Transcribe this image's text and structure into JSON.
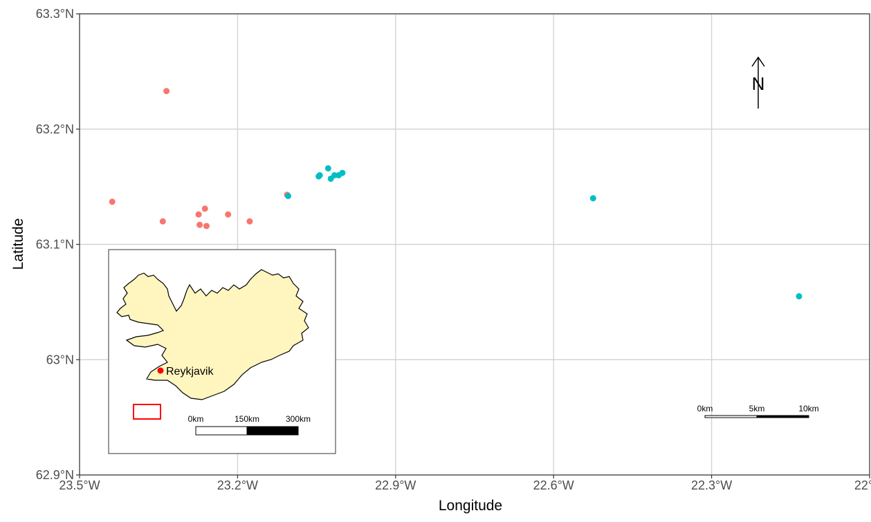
{
  "chart_data": {
    "type": "scatter",
    "xlabel": "Longitude",
    "ylabel": "Latitude",
    "xlim": [
      -23.5,
      -22.0
    ],
    "ylim": [
      62.9,
      63.3
    ],
    "x_ticks": [
      {
        "value": -23.5,
        "label": "23.5°W"
      },
      {
        "value": -23.2,
        "label": "23.2°W"
      },
      {
        "value": -22.9,
        "label": "22.9°W"
      },
      {
        "value": -22.6,
        "label": "22.6°W"
      },
      {
        "value": -22.3,
        "label": "22.3°W"
      },
      {
        "value": -22.0,
        "label": "22°W"
      }
    ],
    "y_ticks": [
      {
        "value": 62.9,
        "label": "62.9°N"
      },
      {
        "value": 63.0,
        "label": "63°N"
      },
      {
        "value": 63.1,
        "label": "63.1°N"
      },
      {
        "value": 63.2,
        "label": "63.2°N"
      },
      {
        "value": 63.3,
        "label": "63.3°N"
      }
    ],
    "grid": true,
    "series": [
      {
        "color": "#F8766D",
        "points": [
          [
            -23.438,
            63.137
          ],
          [
            -23.335,
            63.233
          ],
          [
            -23.342,
            63.12
          ],
          [
            -23.274,
            63.126
          ],
          [
            -23.272,
            63.117
          ],
          [
            -23.262,
            63.131
          ],
          [
            -23.259,
            63.116
          ],
          [
            -23.218,
            63.126
          ],
          [
            -23.177,
            63.12
          ],
          [
            -23.106,
            63.143
          ]
        ]
      },
      {
        "color": "#00BFC4",
        "points": [
          [
            -23.104,
            63.142
          ],
          [
            -23.046,
            63.159
          ],
          [
            -23.044,
            63.16
          ],
          [
            -23.028,
            63.166
          ],
          [
            -23.023,
            63.157
          ],
          [
            -23.016,
            63.16
          ],
          [
            -23.008,
            63.16
          ],
          [
            -23.001,
            63.162
          ],
          [
            -22.525,
            63.14
          ],
          [
            -22.134,
            63.055
          ]
        ]
      }
    ]
  },
  "north_arrow": {
    "letter": "N"
  },
  "scale_bar": {
    "labels": [
      "0km",
      "5km",
      "10km"
    ]
  },
  "inset": {
    "city": "Reykjavik",
    "land_color": "#FFF5BF",
    "marker_color": "#FF0000",
    "scale_labels": [
      "0km",
      "150km",
      "300km"
    ]
  }
}
